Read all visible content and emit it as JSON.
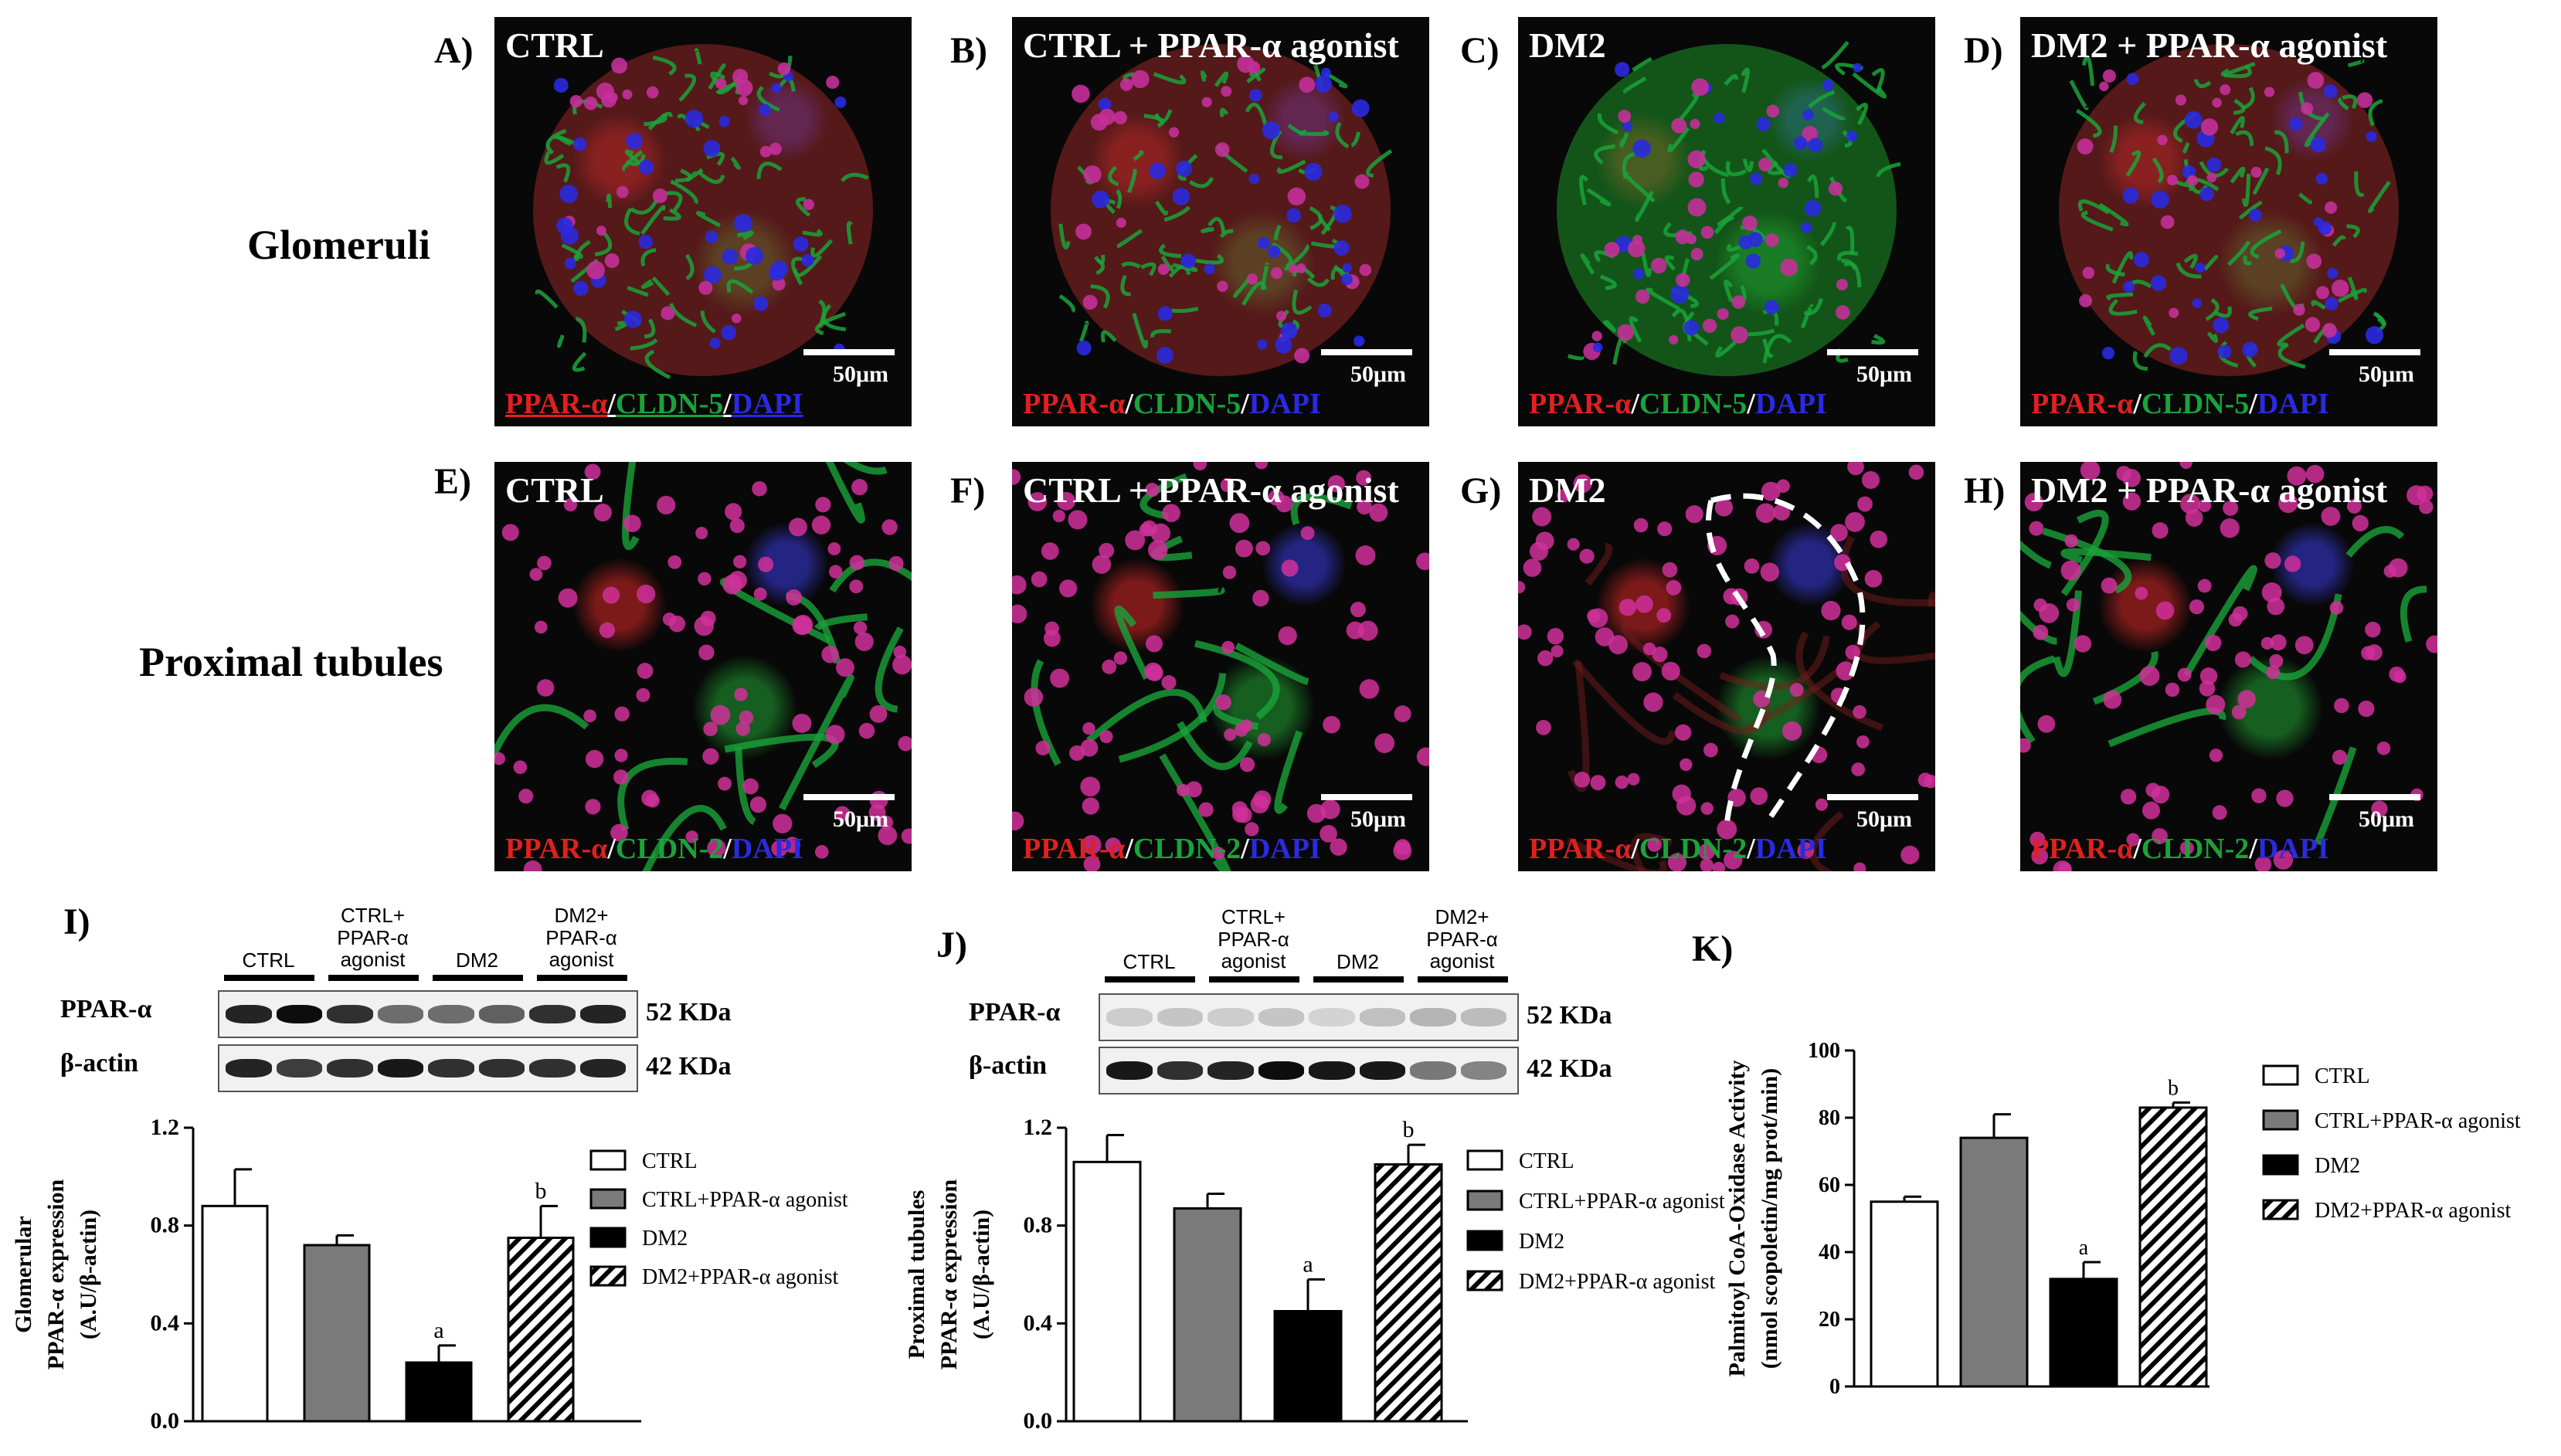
{
  "micrographs": [
    {
      "label": "A)",
      "title": "CTRL",
      "stain": [
        "PPAR-α",
        "/",
        "CLDN-5",
        "/",
        "DAPI"
      ],
      "scale": "50μm",
      "type": "glom"
    },
    {
      "label": "B)",
      "title": "CTRL + PPAR-α agonist",
      "stain": [
        "PPAR-α",
        "/",
        "CLDN-5",
        "/",
        "DAPI"
      ],
      "scale": "50μm",
      "type": "glom"
    },
    {
      "label": "C)",
      "title": "DM2",
      "stain": [
        "PPAR-α",
        "/",
        "CLDN-5",
        "/",
        "DAPI"
      ],
      "scale": "50μm",
      "type": "glom"
    },
    {
      "label": "D)",
      "title": "DM2 + PPAR-α agonist",
      "stain": [
        "PPAR-α",
        "/",
        "CLDN-5",
        "/",
        "DAPI"
      ],
      "scale": "50μm",
      "type": "glom"
    },
    {
      "label": "E)",
      "title": "CTRL",
      "stain": [
        "PPAR-α",
        "/",
        "CLDN-2",
        "/",
        "DAPI"
      ],
      "scale": "50μm",
      "type": "tub"
    },
    {
      "label": "F)",
      "title": "CTRL + PPAR-α agonist",
      "stain": [
        "PPAR-α",
        "/",
        "CLDN-2",
        "/",
        "DAPI"
      ],
      "scale": "50μm",
      "type": "tub"
    },
    {
      "label": "G)",
      "title": "DM2",
      "stain": [
        "PPAR-α",
        "/",
        "CLDN-2",
        "/",
        "DAPI"
      ],
      "scale": "50μm",
      "type": "tub"
    },
    {
      "label": "H)",
      "title": "DM2 + PPAR-α agonist",
      "stain": [
        "PPAR-α",
        "/",
        "CLDN-2",
        "/",
        "DAPI"
      ],
      "scale": "50μm",
      "type": "tub"
    }
  ],
  "row_labels": {
    "glomeruli": "Glomeruli",
    "tubules": "Proximal tubules"
  },
  "blot_I": {
    "label": "I)",
    "groups": [
      [
        "CTRL"
      ],
      [
        "CTRL+",
        "PPAR-α",
        "agonist"
      ],
      [
        "DM2"
      ],
      [
        "DM2+",
        "PPAR-α",
        "agonist"
      ]
    ],
    "rows": [
      {
        "name": "PPAR-α",
        "kda": "52 KDa"
      },
      {
        "name": "β-actin",
        "kda": "42 KDa"
      }
    ]
  },
  "blot_J": {
    "label": "J)",
    "groups": [
      [
        "CTRL"
      ],
      [
        "CTRL+",
        "PPAR-α",
        "agonist"
      ],
      [
        "DM2"
      ],
      [
        "DM2+",
        "PPAR-α",
        "agonist"
      ]
    ],
    "rows": [
      {
        "name": "PPAR-α",
        "kda": "52 KDa"
      },
      {
        "name": "β-actin",
        "kda": "42 KDa"
      }
    ]
  },
  "colors": {
    "red": "#e02020",
    "green": "#1aa33a",
    "blue": "#2a2ae0",
    "gray": "#7a7a7a",
    "black": "#000000",
    "white": "#ffffff"
  },
  "chart_data": [
    {
      "type": "bar",
      "panel": "I)",
      "categories": [
        "CTRL",
        "CTRL+PPAR-α agonist",
        "DM2",
        "DM2+PPAR-α agonist"
      ],
      "values": [
        0.88,
        0.72,
        0.24,
        0.75
      ],
      "errors": [
        0.15,
        0.04,
        0.07,
        0.13
      ],
      "annotations": [
        "",
        "",
        "a",
        "b"
      ],
      "ylabel": [
        "Glomerular",
        "PPAR-α expression",
        "(A.U/β-actin)"
      ],
      "ylim": [
        0,
        1.2
      ],
      "yticks": [
        "0.0",
        "0.4",
        "0.8",
        "1.2"
      ],
      "legend": [
        "CTRL",
        "CTRL+PPAR-α agonist",
        "DM2",
        "DM2+PPAR-α agonist"
      ]
    },
    {
      "type": "bar",
      "panel": "J)",
      "categories": [
        "CTRL",
        "CTRL+PPAR-α agonist",
        "DM2",
        "DM2+PPAR-α agonist"
      ],
      "values": [
        1.06,
        0.87,
        0.45,
        1.05
      ],
      "errors": [
        0.11,
        0.06,
        0.13,
        0.08
      ],
      "annotations": [
        "",
        "",
        "a",
        "b"
      ],
      "ylabel": [
        "Proximal tubules",
        "PPAR-α expression",
        "(A.U/β-actin)"
      ],
      "ylim": [
        0,
        1.2
      ],
      "yticks": [
        "0.0",
        "0.4",
        "0.8",
        "1.2"
      ],
      "legend": [
        "CTRL",
        "CTRL+PPAR-α agonist",
        "DM2",
        "DM2+PPAR-α agonist"
      ]
    },
    {
      "type": "bar",
      "panel": "K)",
      "categories": [
        "CTRL",
        "CTRL+PPAR-α agonist",
        "DM2",
        "DM2+PPAR-α agonist"
      ],
      "values": [
        55,
        74,
        32,
        83
      ],
      "errors": [
        1.5,
        7,
        5,
        1.5
      ],
      "annotations": [
        "",
        "",
        "a",
        "b"
      ],
      "ylabel": [
        "Palmitoyl CoA-Oxidase Activity",
        "(nmol scopoletin/mg prot/min)"
      ],
      "ylim": [
        0,
        100
      ],
      "yticks": [
        "0",
        "20",
        "40",
        "60",
        "80",
        "100"
      ],
      "legend": [
        "CTRL",
        "CTRL+PPAR-α agonist",
        "DM2",
        "DM2+PPAR-α agonist"
      ]
    }
  ]
}
